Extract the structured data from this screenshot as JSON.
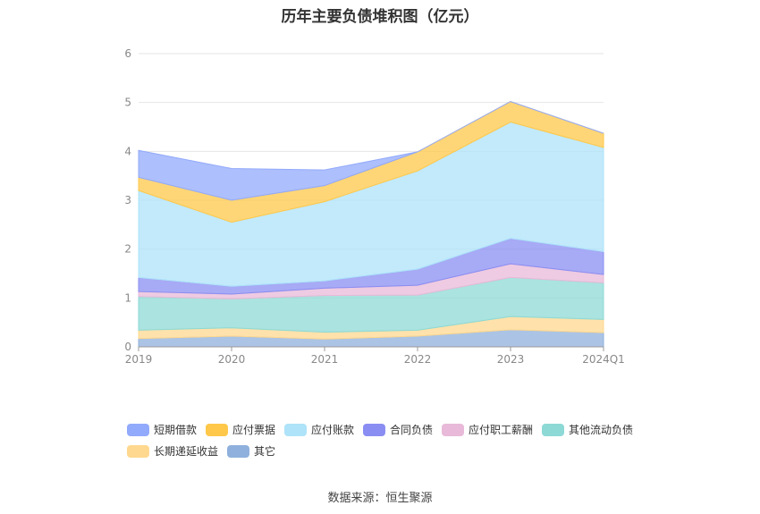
{
  "chart_data": {
    "type": "area",
    "title": "历年主要负债堆积图（亿元）",
    "categories": [
      "2019",
      "2020",
      "2021",
      "2022",
      "2023",
      "2024Q1"
    ],
    "yticks": [
      "0",
      "1",
      "2",
      "3",
      "4",
      "5",
      "6"
    ],
    "ylim": [
      0,
      6
    ],
    "grid": true,
    "legend_position": "bottom",
    "stacked": true,
    "series": [
      {
        "name": "其它",
        "color": "#8fb0dc",
        "values": [
          0.17,
          0.22,
          0.16,
          0.22,
          0.35,
          0.29
        ]
      },
      {
        "name": "长期递延收益",
        "color": "#ffd88f",
        "values": [
          0.17,
          0.17,
          0.14,
          0.12,
          0.27,
          0.27
        ]
      },
      {
        "name": "其他流动负债",
        "color": "#8dd9d6",
        "values": [
          0.69,
          0.59,
          0.75,
          0.72,
          0.8,
          0.75
        ]
      },
      {
        "name": "应付职工薪酬",
        "color": "#e8b9d8",
        "values": [
          0.1,
          0.1,
          0.15,
          0.2,
          0.28,
          0.17
        ]
      },
      {
        "name": "合同负债",
        "color": "#8a8ef2",
        "values": [
          0.29,
          0.16,
          0.15,
          0.33,
          0.52,
          0.47
        ]
      },
      {
        "name": "应付账款",
        "color": "#aee3f9",
        "values": [
          1.78,
          1.31,
          1.62,
          2.01,
          2.38,
          2.13
        ]
      },
      {
        "name": "应付票据",
        "color": "#ffc84a",
        "values": [
          0.27,
          0.45,
          0.33,
          0.39,
          0.42,
          0.29
        ]
      },
      {
        "name": "短期借款",
        "color": "#92aafb",
        "values": [
          0.55,
          0.65,
          0.32,
          0.0,
          0.0,
          0.0
        ]
      }
    ],
    "legend_order": [
      "短期借款",
      "应付票据",
      "应付账款",
      "合同负债",
      "应付职工薪酬",
      "其他流动负债",
      "长期递延收益",
      "其它"
    ]
  },
  "source": "数据来源：恒生聚源"
}
